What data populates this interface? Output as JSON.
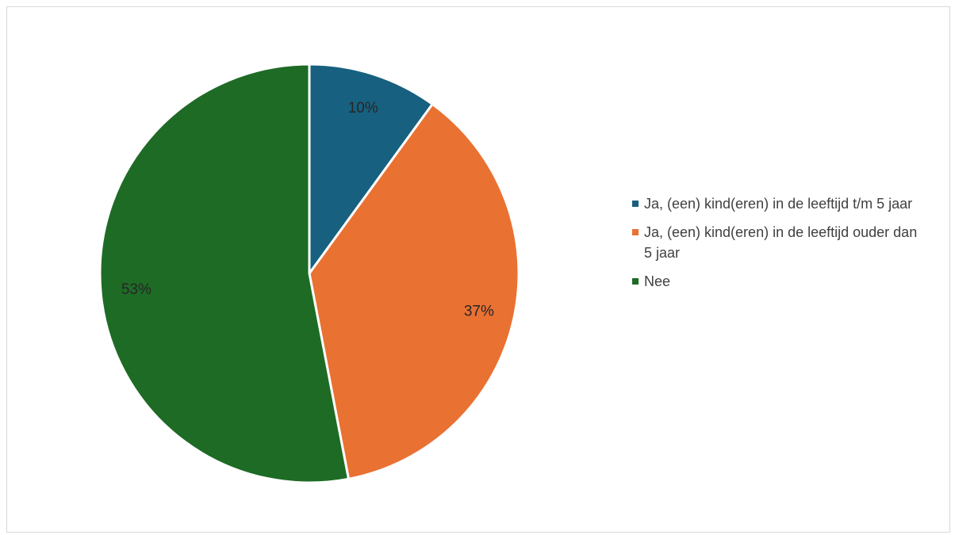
{
  "chart_data": {
    "type": "pie",
    "title": "",
    "slices": [
      {
        "label": "Ja, (een) kind(eren) in de leeftijd t/m 5 jaar",
        "value": 10,
        "value_label": "10%",
        "color": "#17607f"
      },
      {
        "label": "Ja, (een) kind(eren) in de leeftijd ouder dan 5 jaar",
        "value": 37,
        "value_label": "37%",
        "color": "#e97132"
      },
      {
        "label": "Nee",
        "value": 53,
        "value_label": "53%",
        "color": "#1e6b26"
      }
    ],
    "legend_position": "right",
    "start_angle": "top",
    "direction": "clockwise"
  }
}
